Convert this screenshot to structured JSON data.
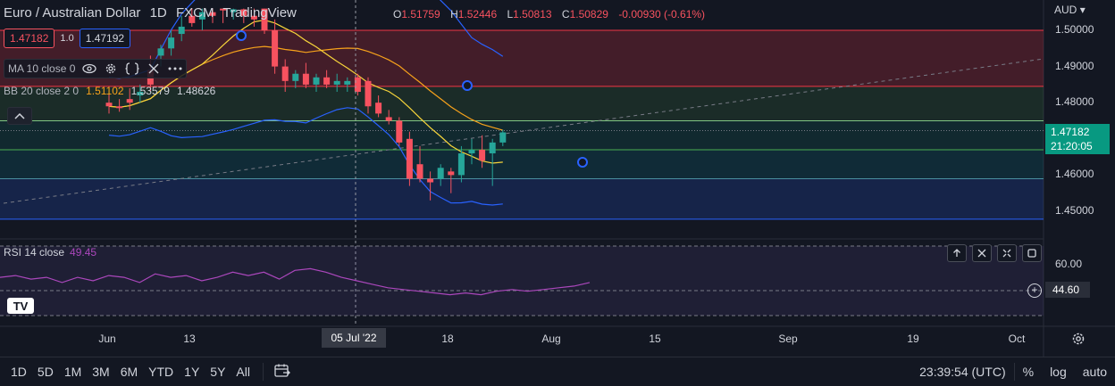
{
  "header": {
    "symbol": "Euro / Australian Dollar",
    "interval": "1D",
    "exchange": "FXCM",
    "platform": "TradingView",
    "ohlc": {
      "o_label": "O",
      "o": "1.51759",
      "h_label": "H",
      "h": "1.52446",
      "l_label": "L",
      "l": "1.50813",
      "c_label": "C",
      "c": "1.50829",
      "change": "-0.00930 (-0.61%)"
    }
  },
  "bidask": {
    "sell": "1.47182",
    "spread": "1.0",
    "buy": "1.47192"
  },
  "indicators": {
    "ma": {
      "label": "MA 10 close 0"
    },
    "bb": {
      "label": "BB 20 close 2 0",
      "basis": "1.51102",
      "upper": "1.53579",
      "lower": "1.48626"
    },
    "rsi": {
      "label": "RSI 14 close",
      "value": "49.45"
    }
  },
  "icons": {
    "eye": "eye-icon",
    "gear": "gear-icon",
    "braces": "braces-icon",
    "close": "close-icon",
    "more": "more-icon",
    "up": "chevron-up-icon",
    "logo": "tradingview-logo"
  },
  "logo_text": "TV",
  "price_axis": {
    "unit": "AUD",
    "labels": [
      "1.50000",
      "1.49000",
      "1.48000",
      "1.46000",
      "1.45000"
    ],
    "current_price": "1.47182",
    "countdown": "21:20:05"
  },
  "rsi_axis": {
    "labels": [
      "60.00"
    ],
    "current": "44.60"
  },
  "time_axis": {
    "labels": [
      "Jun",
      "13",
      "18",
      "Aug",
      "15",
      "Sep",
      "19",
      "Oct"
    ],
    "crosshair": "05 Jul '22"
  },
  "bottom_bar": {
    "timeframes": [
      "1D",
      "5D",
      "1M",
      "3M",
      "6M",
      "YTD",
      "1Y",
      "5Y",
      "All"
    ],
    "clock": "23:39:54 (UTC)",
    "percent": "%",
    "log": "log",
    "auto": "auto"
  },
  "colors": {
    "background": "#131722",
    "up": "#26a69a",
    "down": "#f7525f",
    "ma": "#f7d53b",
    "bb_basis": "#f7a21b",
    "bb_band": "#2962ff",
    "rsi": "#ab47bc"
  },
  "chart_data": {
    "type": "candlestick",
    "price_range": [
      1.445,
      1.506
    ],
    "candles": [
      {
        "o": 1.48,
        "h": 1.483,
        "l": 1.477,
        "c": 1.479
      },
      {
        "o": 1.479,
        "h": 1.481,
        "l": 1.4775,
        "c": 1.4785
      },
      {
        "o": 1.481,
        "h": 1.484,
        "l": 1.478,
        "c": 1.48
      },
      {
        "o": 1.482,
        "h": 1.485,
        "l": 1.48,
        "c": 1.483
      },
      {
        "o": 1.489,
        "h": 1.493,
        "l": 1.483,
        "c": 1.485
      },
      {
        "o": 1.493,
        "h": 1.496,
        "l": 1.49,
        "c": 1.495
      },
      {
        "o": 1.495,
        "h": 1.5,
        "l": 1.493,
        "c": 1.498
      },
      {
        "o": 1.499,
        "h": 1.504,
        "l": 1.497,
        "c": 1.501
      },
      {
        "o": 1.504,
        "h": 1.506,
        "l": 1.501,
        "c": 1.502
      },
      {
        "o": 1.503,
        "h": 1.506,
        "l": 1.5,
        "c": 1.505
      },
      {
        "o": 1.505,
        "h": 1.506,
        "l": 1.502,
        "c": 1.504
      },
      {
        "o": 1.506,
        "h": 1.506,
        "l": 1.502,
        "c": 1.5055
      },
      {
        "o": 1.505,
        "h": 1.506,
        "l": 1.503,
        "c": 1.5058
      },
      {
        "o": 1.5058,
        "h": 1.506,
        "l": 1.502,
        "c": 1.504
      },
      {
        "o": 1.504,
        "h": 1.506,
        "l": 1.501,
        "c": 1.503
      },
      {
        "o": 1.506,
        "h": 1.506,
        "l": 1.499,
        "c": 1.5
      },
      {
        "o": 1.5,
        "h": 1.503,
        "l": 1.488,
        "c": 1.49
      },
      {
        "o": 1.49,
        "h": 1.492,
        "l": 1.483,
        "c": 1.486
      },
      {
        "o": 1.486,
        "h": 1.489,
        "l": 1.484,
        "c": 1.488
      },
      {
        "o": 1.488,
        "h": 1.491,
        "l": 1.484,
        "c": 1.485
      },
      {
        "o": 1.485,
        "h": 1.488,
        "l": 1.483,
        "c": 1.487
      },
      {
        "o": 1.487,
        "h": 1.489,
        "l": 1.484,
        "c": 1.485
      },
      {
        "o": 1.485,
        "h": 1.488,
        "l": 1.483,
        "c": 1.486
      },
      {
        "o": 1.485,
        "h": 1.487,
        "l": 1.483,
        "c": 1.486
      },
      {
        "o": 1.487,
        "h": 1.488,
        "l": 1.482,
        "c": 1.483
      },
      {
        "o": 1.486,
        "h": 1.487,
        "l": 1.477,
        "c": 1.479
      },
      {
        "o": 1.48,
        "h": 1.482,
        "l": 1.476,
        "c": 1.477
      },
      {
        "o": 1.476,
        "h": 1.478,
        "l": 1.474,
        "c": 1.475
      },
      {
        "o": 1.475,
        "h": 1.476,
        "l": 1.468,
        "c": 1.469
      },
      {
        "o": 1.47,
        "h": 1.472,
        "l": 1.457,
        "c": 1.459
      },
      {
        "o": 1.463,
        "h": 1.468,
        "l": 1.458,
        "c": 1.459
      },
      {
        "o": 1.459,
        "h": 1.461,
        "l": 1.453,
        "c": 1.458
      },
      {
        "o": 1.459,
        "h": 1.463,
        "l": 1.457,
        "c": 1.462
      },
      {
        "o": 1.461,
        "h": 1.462,
        "l": 1.455,
        "c": 1.46
      },
      {
        "o": 1.46,
        "h": 1.468,
        "l": 1.458,
        "c": 1.466
      },
      {
        "o": 1.466,
        "h": 1.47,
        "l": 1.463,
        "c": 1.467
      },
      {
        "o": 1.467,
        "h": 1.471,
        "l": 1.462,
        "c": 1.464
      },
      {
        "o": 1.466,
        "h": 1.47,
        "l": 1.457,
        "c": 1.469
      },
      {
        "o": 1.469,
        "h": 1.4725,
        "l": 1.468,
        "c": 1.4718
      }
    ],
    "rsi": [
      52,
      53,
      51,
      52,
      49,
      52,
      50,
      53,
      52,
      49,
      54,
      52,
      53,
      50,
      52,
      55,
      53,
      55,
      51,
      56,
      57,
      55,
      52,
      50,
      48,
      46,
      45,
      44,
      43,
      42,
      43,
      42,
      44,
      45,
      44,
      45,
      46,
      47,
      49
    ]
  }
}
